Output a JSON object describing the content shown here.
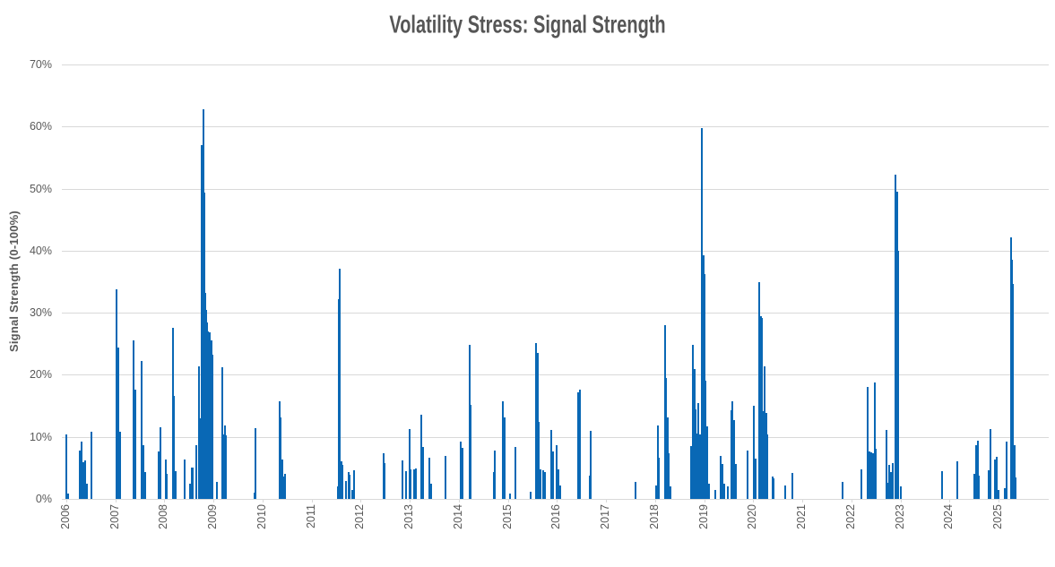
{
  "chart_data": {
    "type": "bar",
    "title": "Volatility Stress: Signal Strength",
    "xlabel": "",
    "ylabel": "Signal Strength (0-100%)",
    "legend": null,
    "grid": "horizontal",
    "ylim": [
      0,
      70
    ],
    "xlim": [
      2005.9,
      2026.0
    ],
    "y_tick_labels": [
      "0%",
      "10%",
      "20%",
      "30%",
      "40%",
      "50%",
      "60%",
      "70%"
    ],
    "y_tick_values": [
      0,
      10,
      20,
      30,
      40,
      50,
      60,
      70
    ],
    "x_tick_labels": [
      "2006",
      "2007",
      "2008",
      "2009",
      "2010",
      "2011",
      "2012",
      "2013",
      "2014",
      "2015",
      "2016",
      "2017",
      "2018",
      "2019",
      "2020",
      "2021",
      "2022",
      "2023",
      "2024",
      "2025"
    ],
    "x_tick_values": [
      2006,
      2007,
      2008,
      2009,
      2010,
      2011,
      2012,
      2013,
      2014,
      2015,
      2016,
      2017,
      2018,
      2019,
      2020,
      2021,
      2022,
      2023,
      2024,
      2025
    ],
    "colors": {
      "bar": "#0968b5",
      "grid": "#d9d9d9",
      "label": "#595959",
      "title": "#565656",
      "background": "#ffffff"
    },
    "points_format": [
      "year_decimal",
      "signal_strength_pct"
    ],
    "points": [
      [
        2006.0,
        10.4
      ],
      [
        2006.04,
        0.9
      ],
      [
        2006.27,
        7.8
      ],
      [
        2006.31,
        9.2
      ],
      [
        2006.35,
        5.9
      ],
      [
        2006.38,
        6.2
      ],
      [
        2006.42,
        2.4
      ],
      [
        2006.52,
        10.8
      ],
      [
        2007.03,
        33.8
      ],
      [
        2007.06,
        24.4
      ],
      [
        2007.1,
        10.8
      ],
      [
        2007.37,
        25.6
      ],
      [
        2007.4,
        17.6
      ],
      [
        2007.54,
        22.3
      ],
      [
        2007.57,
        8.6
      ],
      [
        2007.6,
        4.4
      ],
      [
        2007.88,
        7.6
      ],
      [
        2007.91,
        11.5
      ],
      [
        2008.02,
        6.4
      ],
      [
        2008.05,
        4.1
      ],
      [
        2008.17,
        27.6
      ],
      [
        2008.2,
        16.6
      ],
      [
        2008.23,
        4.5
      ],
      [
        2008.42,
        6.4
      ],
      [
        2008.52,
        2.5
      ],
      [
        2008.55,
        5.1
      ],
      [
        2008.58,
        5.0
      ],
      [
        2008.64,
        8.7
      ],
      [
        2008.7,
        21.4
      ],
      [
        2008.72,
        13.0
      ],
      [
        2008.75,
        57.0
      ],
      [
        2008.77,
        28.8
      ],
      [
        2008.79,
        62.8
      ],
      [
        2008.81,
        49.3
      ],
      [
        2008.83,
        33.2
      ],
      [
        2008.85,
        30.5
      ],
      [
        2008.87,
        28.4
      ],
      [
        2008.89,
        27.0
      ],
      [
        2008.92,
        26.8
      ],
      [
        2008.94,
        23.5
      ],
      [
        2008.96,
        25.6
      ],
      [
        2008.98,
        23.3
      ],
      [
        2009.06,
        2.8
      ],
      [
        2009.17,
        21.2
      ],
      [
        2009.2,
        10.4
      ],
      [
        2009.23,
        11.8
      ],
      [
        2009.26,
        10.3
      ],
      [
        2009.83,
        1.0
      ],
      [
        2009.86,
        11.4
      ],
      [
        2010.34,
        15.7
      ],
      [
        2010.37,
        13.1
      ],
      [
        2010.4,
        6.3
      ],
      [
        2010.43,
        3.6
      ],
      [
        2010.46,
        4.1
      ],
      [
        2011.54,
        2.0
      ],
      [
        2011.56,
        32.2
      ],
      [
        2011.58,
        37.1
      ],
      [
        2011.61,
        6.0
      ],
      [
        2011.63,
        5.5
      ],
      [
        2011.7,
        2.9
      ],
      [
        2011.75,
        4.4
      ],
      [
        2011.78,
        3.9
      ],
      [
        2011.82,
        1.4
      ],
      [
        2011.86,
        4.6
      ],
      [
        2012.47,
        7.3
      ],
      [
        2012.49,
        5.8
      ],
      [
        2012.85,
        6.2
      ],
      [
        2012.92,
        4.5
      ],
      [
        2012.99,
        11.3
      ],
      [
        2013.02,
        4.7
      ],
      [
        2013.09,
        4.7
      ],
      [
        2013.12,
        4.9
      ],
      [
        2013.24,
        13.6
      ],
      [
        2013.27,
        8.4
      ],
      [
        2013.4,
        6.7
      ],
      [
        2013.43,
        2.4
      ],
      [
        2013.72,
        7.0
      ],
      [
        2014.04,
        9.3
      ],
      [
        2014.07,
        8.3
      ],
      [
        2014.22,
        24.8
      ],
      [
        2014.24,
        15.2
      ],
      [
        2014.71,
        4.4
      ],
      [
        2014.74,
        7.8
      ],
      [
        2014.9,
        15.7
      ],
      [
        2014.93,
        13.2
      ],
      [
        2015.04,
        0.9
      ],
      [
        2015.15,
        8.4
      ],
      [
        2015.46,
        1.2
      ],
      [
        2015.58,
        25.1
      ],
      [
        2015.6,
        23.5
      ],
      [
        2015.63,
        12.4
      ],
      [
        2015.66,
        4.8
      ],
      [
        2015.72,
        4.6
      ],
      [
        2015.75,
        4.3
      ],
      [
        2015.89,
        11.1
      ],
      [
        2015.92,
        7.7
      ],
      [
        2016.0,
        8.7
      ],
      [
        2016.03,
        4.7
      ],
      [
        2016.06,
        2.2
      ],
      [
        2016.44,
        17.2
      ],
      [
        2016.46,
        17.6
      ],
      [
        2016.66,
        3.7
      ],
      [
        2016.69,
        11.0
      ],
      [
        2017.6,
        2.7
      ],
      [
        2018.02,
        2.1
      ],
      [
        2018.05,
        11.8
      ],
      [
        2018.08,
        6.7
      ],
      [
        2018.2,
        28.0
      ],
      [
        2018.23,
        19.5
      ],
      [
        2018.25,
        13.2
      ],
      [
        2018.28,
        7.4
      ],
      [
        2018.31,
        2.0
      ],
      [
        2018.73,
        8.5
      ],
      [
        2018.77,
        24.8
      ],
      [
        2018.8,
        21.0
      ],
      [
        2018.82,
        14.5
      ],
      [
        2018.85,
        10.5
      ],
      [
        2018.88,
        15.5
      ],
      [
        2018.91,
        10.4
      ],
      [
        2018.93,
        8.4
      ],
      [
        2018.96,
        59.7
      ],
      [
        2018.98,
        39.2
      ],
      [
        2019.0,
        36.3
      ],
      [
        2019.03,
        19.0
      ],
      [
        2019.07,
        11.7
      ],
      [
        2019.1,
        2.5
      ],
      [
        2019.23,
        1.5
      ],
      [
        2019.34,
        6.9
      ],
      [
        2019.37,
        5.6
      ],
      [
        2019.4,
        2.4
      ],
      [
        2019.49,
        2.0
      ],
      [
        2019.56,
        14.3
      ],
      [
        2019.58,
        15.8
      ],
      [
        2019.61,
        12.7
      ],
      [
        2019.64,
        5.6
      ],
      [
        2019.88,
        7.8
      ],
      [
        2020.02,
        15.0
      ],
      [
        2020.05,
        6.5
      ],
      [
        2020.12,
        34.9
      ],
      [
        2020.15,
        29.5
      ],
      [
        2020.17,
        29.2
      ],
      [
        2020.19,
        14.2
      ],
      [
        2020.21,
        10.8
      ],
      [
        2020.24,
        21.4
      ],
      [
        2020.26,
        13.9
      ],
      [
        2020.29,
        10.4
      ],
      [
        2020.4,
        3.6
      ],
      [
        2020.42,
        3.3
      ],
      [
        2020.65,
        2.2
      ],
      [
        2020.8,
        4.2
      ],
      [
        2021.82,
        2.8
      ],
      [
        2022.2,
        4.8
      ],
      [
        2022.33,
        18.1
      ],
      [
        2022.36,
        7.6
      ],
      [
        2022.38,
        7.3
      ],
      [
        2022.41,
        7.5
      ],
      [
        2022.44,
        7.4
      ],
      [
        2022.47,
        18.7
      ],
      [
        2022.5,
        8.1
      ],
      [
        2022.71,
        11.1
      ],
      [
        2022.75,
        2.6
      ],
      [
        2022.77,
        5.5
      ],
      [
        2022.8,
        4.4
      ],
      [
        2022.84,
        5.8
      ],
      [
        2022.9,
        52.2
      ],
      [
        2022.93,
        49.5
      ],
      [
        2022.96,
        40.0
      ],
      [
        2023.0,
        2.0
      ],
      [
        2023.85,
        4.5
      ],
      [
        2024.15,
        6.0
      ],
      [
        2024.51,
        4.1
      ],
      [
        2024.54,
        8.7
      ],
      [
        2024.57,
        9.4
      ],
      [
        2024.6,
        3.8
      ],
      [
        2024.8,
        4.6
      ],
      [
        2024.83,
        11.2
      ],
      [
        2024.93,
        6.3
      ],
      [
        2024.96,
        6.8
      ],
      [
        2025.0,
        1.5
      ],
      [
        2025.13,
        1.8
      ],
      [
        2025.16,
        9.3
      ],
      [
        2025.25,
        42.1
      ],
      [
        2025.27,
        38.5
      ],
      [
        2025.3,
        34.7
      ],
      [
        2025.32,
        8.7
      ],
      [
        2025.35,
        3.4
      ]
    ]
  }
}
